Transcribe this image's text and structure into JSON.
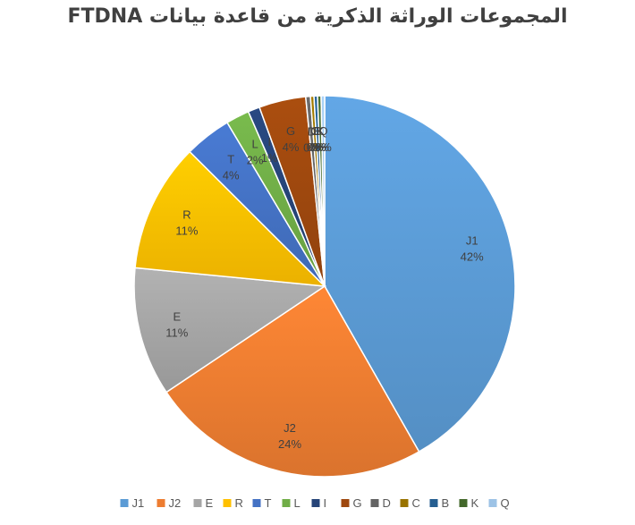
{
  "chart_data": {
    "type": "pie",
    "title": "المجموعات الوراثة الذكرية من قاعدة بيانات FTDNA",
    "categories": [
      "J1",
      "J2",
      "E",
      "R",
      "T",
      "L",
      "I",
      "G",
      "D",
      "C",
      "B",
      "K",
      "Q"
    ],
    "values": [
      42,
      24,
      11,
      11,
      4,
      2,
      1,
      4,
      0.4,
      0.3,
      0.3,
      0.3,
      0.3
    ],
    "data_labels": [
      "42%",
      "24%",
      "11%",
      "11%",
      "4%",
      "2%",
      "1%",
      "4%",
      "0%",
      "0%",
      "0%",
      "0%",
      "0%"
    ],
    "colors": [
      "#5B9BD5",
      "#ED7D31",
      "#A5A5A5",
      "#FFC000",
      "#4472C4",
      "#70AD47",
      "#264478",
      "#9E480E",
      "#636363",
      "#997300",
      "#255E91",
      "#43682B",
      "#9DC3E6"
    ],
    "legend_position": "bottom"
  }
}
